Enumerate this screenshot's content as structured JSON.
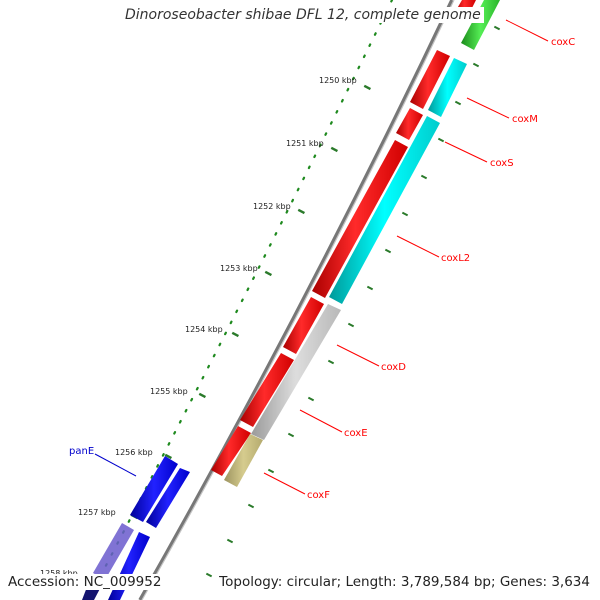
{
  "title": "Dinoroseobacter shibae DFL 12, complete genome",
  "footer": {
    "accession": "Accession: NC_009952",
    "summary": "Topology: circular; Length: 3,789,584 bp; Genes: 3,634"
  },
  "ticks": [
    "1250 kbp",
    "1251 kbp",
    "1252 kbp",
    "1253 kbp",
    "1254 kbp",
    "1255 kbp",
    "1256 kbp",
    "1257 kbp",
    "1258 kbp"
  ],
  "gene_labels": {
    "coxC": "coxC",
    "coxM": "coxM",
    "coxS": "coxS",
    "coxL2": "coxL2",
    "coxD": "coxD",
    "coxE": "coxE",
    "coxF": "coxF",
    "panE": "panE"
  },
  "colors": {
    "red_gene": "#ff0000",
    "cyan_gene": "#00e8e8",
    "grey_gene": "#c8c8c8",
    "olive_gene": "#c2b878",
    "green_gene": "#33cc33",
    "blue_gene": "#0000ee",
    "dark_blue_gene": "#1a1a8c",
    "label_line": "#ff0000",
    "pan_label": "#0000cc",
    "tick_green": "#228822",
    "backbone": "#777777"
  }
}
